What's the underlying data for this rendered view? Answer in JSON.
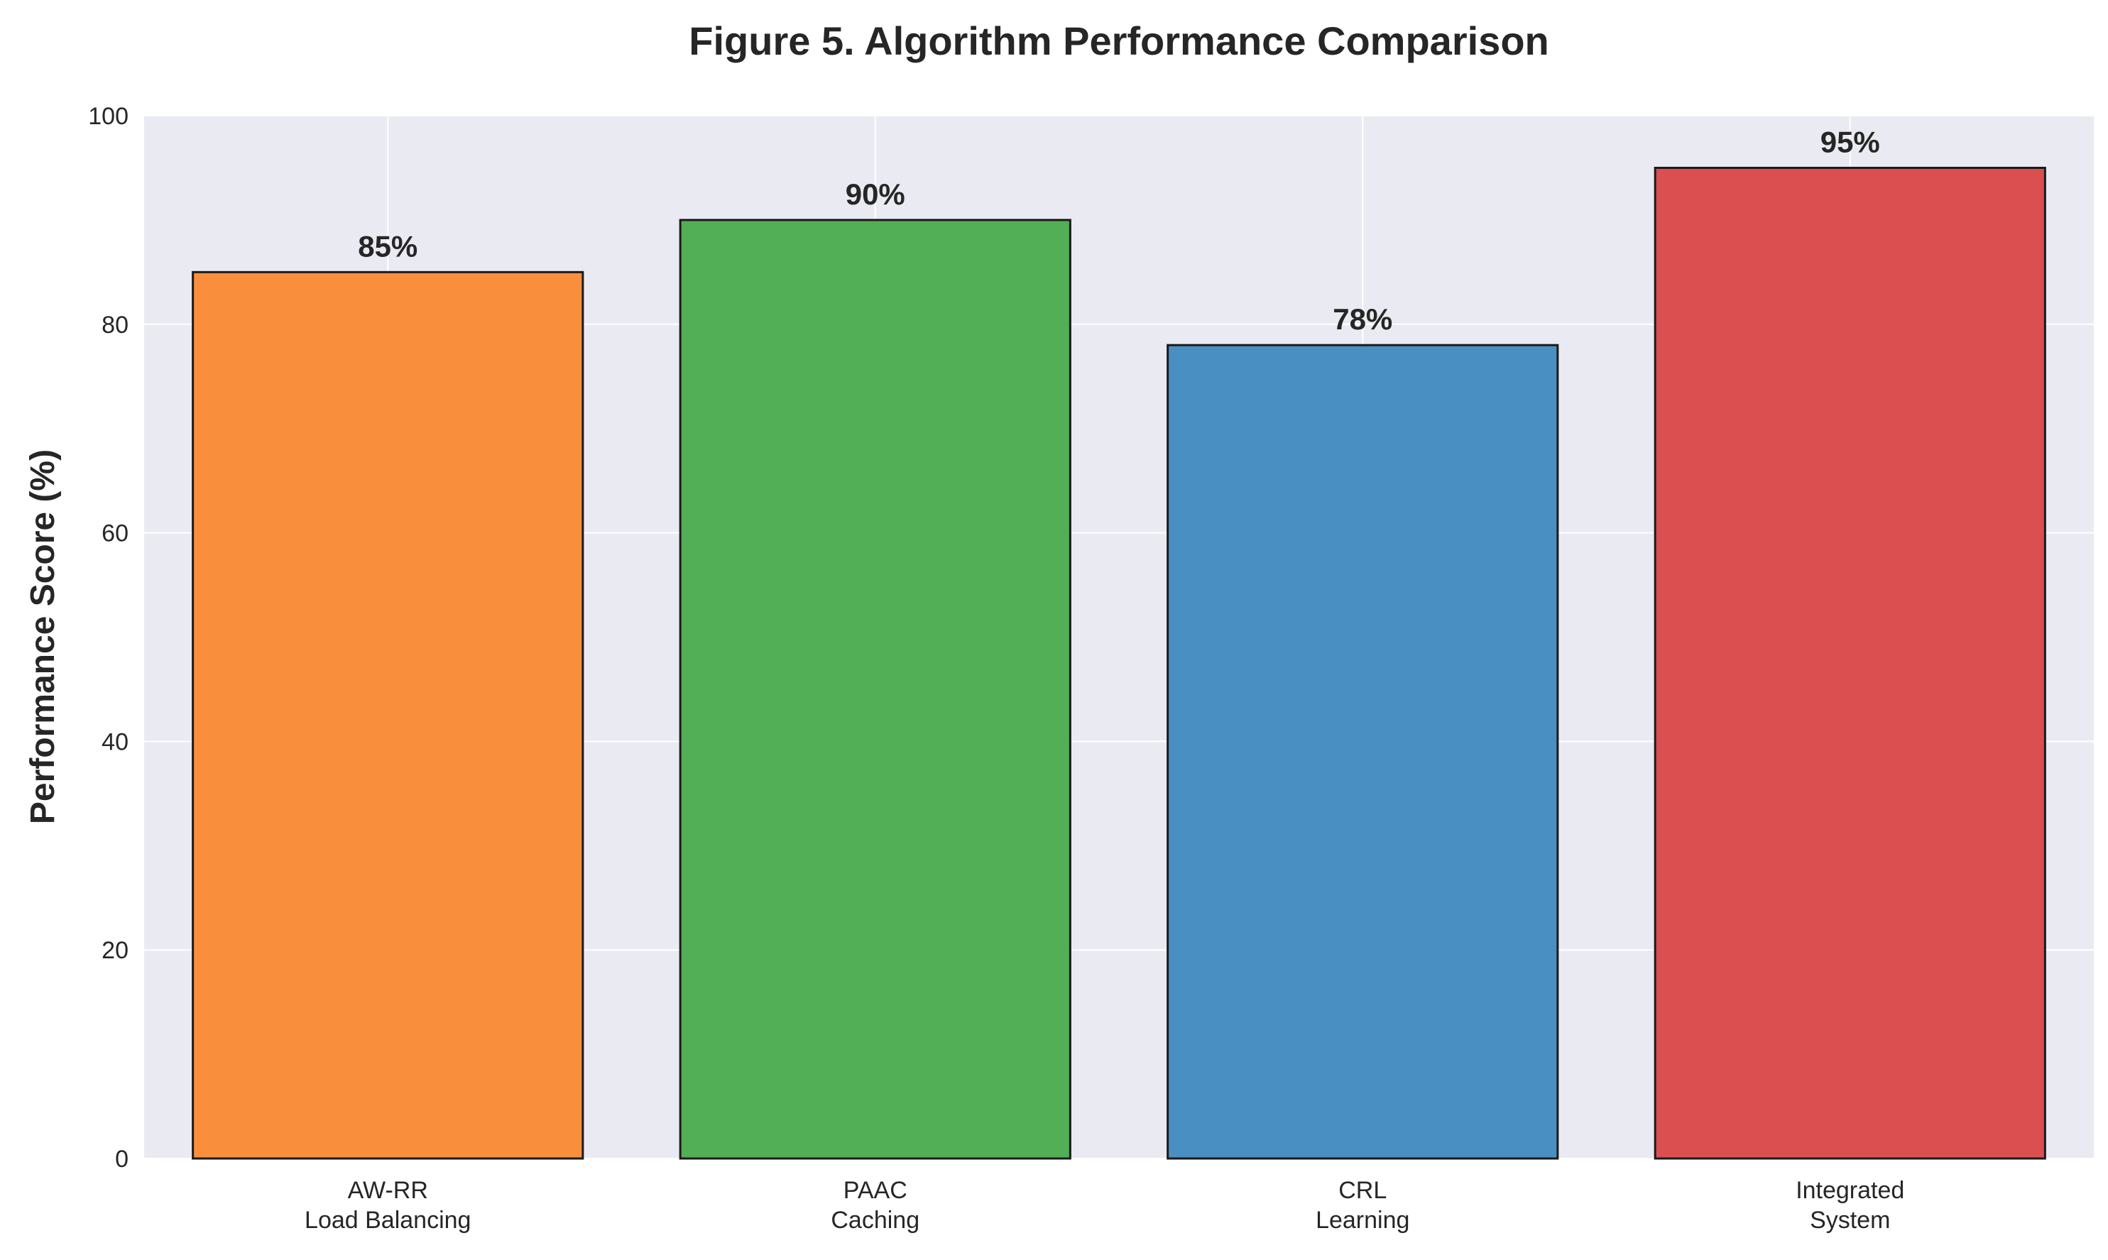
{
  "chart_data": {
    "type": "bar",
    "title": "Figure 5. Algorithm Performance Comparison",
    "xlabel": "",
    "ylabel": "Performance Score (%)",
    "ylim": [
      0,
      100
    ],
    "yticks": [
      "0",
      "20",
      "40",
      "60",
      "80",
      "100"
    ],
    "categories": [
      [
        "AW-RR",
        "Load Balancing"
      ],
      [
        "PAAC",
        "Caching"
      ],
      [
        "CRL",
        "Learning"
      ],
      [
        "Integrated",
        "System"
      ]
    ],
    "values": [
      85,
      90,
      78,
      95
    ],
    "data_labels": [
      "85%",
      "90%",
      "78%",
      "95%"
    ],
    "colors": [
      "#f98f3d",
      "#53af55",
      "#4a8fc1",
      "#db4f51"
    ],
    "edge_color": "#1a1a1a",
    "plot_background": "#eaeaf2",
    "grid": true,
    "grid_color": "#ffffff"
  }
}
